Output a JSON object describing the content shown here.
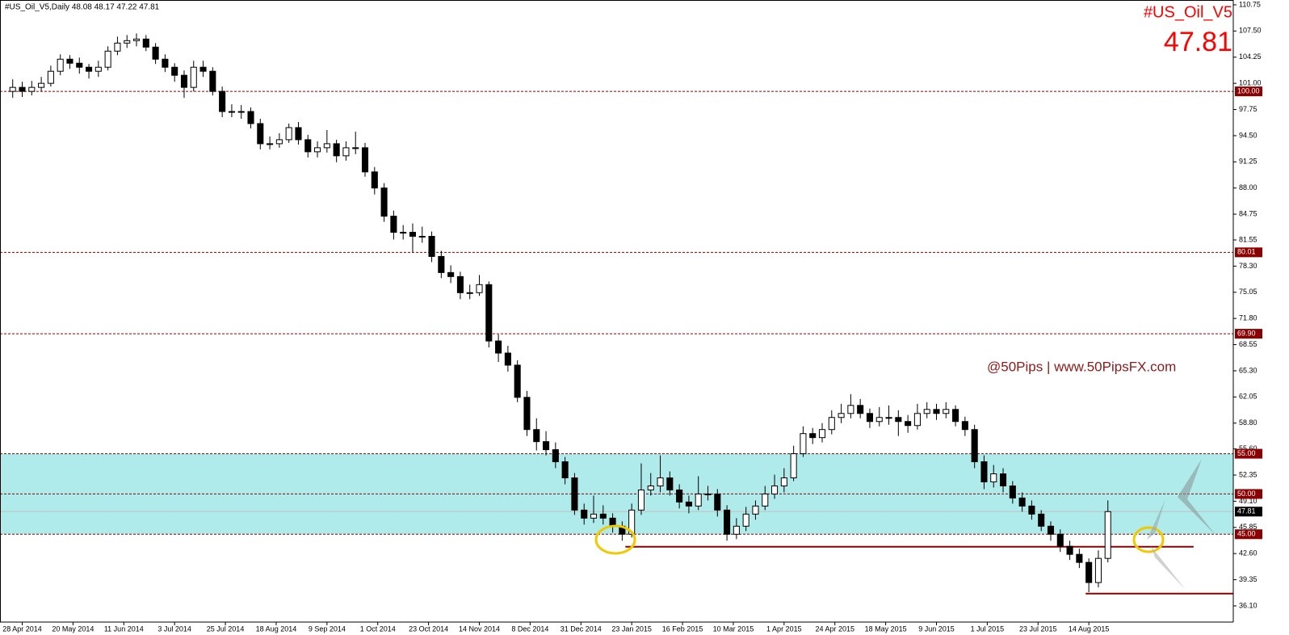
{
  "chart_data": {
    "type": "candlestick",
    "title": "#US_Oil_V5,Daily  48.08 48.17 47.22 47.81",
    "symbol": "#US_Oil_V5",
    "last_price": 47.81,
    "watermark": "@50Pips | www.50PipsFX.com",
    "xlim": [
      -2,
      386.5
    ],
    "ylim": [
      34.09,
      111.35
    ],
    "xticks": [
      {
        "value": 5,
        "label": "28 Apr 2014"
      },
      {
        "value": 21,
        "label": "20 May 2014"
      },
      {
        "value": 37,
        "label": "11 Jun 2014"
      },
      {
        "value": 53,
        "label": "3 Jul 2014"
      },
      {
        "value": 69,
        "label": "25 Jul 2014"
      },
      {
        "value": 85,
        "label": "18 Aug 2014"
      },
      {
        "value": 101,
        "label": "9 Sep 2014"
      },
      {
        "value": 117,
        "label": "1 Oct 2014"
      },
      {
        "value": 133,
        "label": "23 Oct 2014"
      },
      {
        "value": 149,
        "label": "14 Nov 2014"
      },
      {
        "value": 165,
        "label": "8 Dec 2014"
      },
      {
        "value": 181,
        "label": "31 Dec 2014"
      },
      {
        "value": 197,
        "label": "23 Jan 2015"
      },
      {
        "value": 213,
        "label": "16 Feb 2015"
      },
      {
        "value": 229,
        "label": "10 Mar 2015"
      },
      {
        "value": 245,
        "label": "1 Apr 2015"
      },
      {
        "value": 261,
        "label": "24 Apr 2015"
      },
      {
        "value": 277,
        "label": "18 May 2015"
      },
      {
        "value": 293,
        "label": "9 Jun 2015"
      },
      {
        "value": 309,
        "label": "1 Jul 2015"
      },
      {
        "value": 325,
        "label": "23 Jul 2015"
      },
      {
        "value": 341,
        "label": "14 Aug 2015"
      }
    ],
    "yticks": [
      110.75,
      {
        "value": 107.5,
        "label": "107.50"
      },
      104.25,
      {
        "value": 101,
        "label": "101.00"
      },
      97.75,
      {
        "value": 94.5,
        "label": "94.50"
      },
      91.25,
      {
        "value": 88,
        "label": "88.00"
      },
      84.75,
      81.55,
      {
        "value": 78.3,
        "label": "78.30"
      },
      75.05,
      {
        "value": 71.8,
        "label": "71.80"
      },
      68.55,
      {
        "value": 65.3,
        "label": "65.30"
      },
      62.05,
      {
        "value": 58.8,
        "label": "58.80"
      },
      {
        "value": 55.6,
        "label": "55.60"
      },
      52.35,
      {
        "value": 49.1,
        "label": "49.10"
      },
      45.85,
      {
        "value": 42.6,
        "label": "42.60"
      },
      39.35,
      {
        "value": 36.1,
        "label": "36.10"
      }
    ],
    "levels": [
      {
        "value": 100,
        "label": "100.00"
      },
      80.01,
      {
        "value": 69.9,
        "label": "69.90"
      },
      {
        "value": 55,
        "label": "55.00"
      },
      {
        "value": 50,
        "label": "50.00"
      },
      {
        "value": 45,
        "label": "45.00"
      }
    ],
    "zone": [
      45,
      55
    ],
    "zone_color": "#b0ebeb",
    "level_color": "#8b0000",
    "trendlines": [
      {
        "value": 43.45,
        "x": [
          195,
          374
        ]
      },
      {
        "value": 37.63,
        "x": [
          340,
          386.5
        ]
      }
    ],
    "x": [
      2,
      5,
      8,
      11,
      14,
      17,
      20,
      23,
      26,
      29,
      32,
      35,
      38,
      41,
      44,
      47,
      50,
      53,
      56,
      59,
      62,
      65,
      68,
      71,
      74,
      77,
      80,
      83,
      86,
      89,
      92,
      95,
      98,
      101,
      104,
      107,
      110,
      113,
      116,
      119,
      122,
      125,
      128,
      131,
      134,
      137,
      140,
      143,
      146,
      149,
      152,
      155,
      158,
      161,
      164,
      167,
      170,
      173,
      176,
      179,
      182,
      185,
      188,
      191,
      194,
      197,
      200,
      203,
      206,
      209,
      212,
      215,
      218,
      221,
      224,
      227,
      230,
      233,
      236,
      239,
      242,
      245,
      248,
      251,
      254,
      257,
      260,
      263,
      266,
      269,
      272,
      275,
      278,
      281,
      284,
      287,
      290,
      293,
      296,
      299,
      302,
      305,
      308,
      311,
      314,
      317,
      320,
      323,
      326,
      329,
      332,
      335,
      338,
      341,
      344,
      347
    ],
    "open": [
      100,
      100.5,
      100,
      100.5,
      101,
      102.5,
      104,
      103.5,
      103,
      102.5,
      103,
      105,
      106,
      106.3,
      106.5,
      105.5,
      104,
      103,
      102,
      100.5,
      103,
      102.5,
      100,
      97.5,
      97.5,
      97.5,
      96,
      93.5,
      93.5,
      94,
      95.5,
      94,
      92.5,
      93,
      93.5,
      92,
      93,
      93,
      90,
      88,
      84.5,
      82.5,
      82.5,
      82,
      82,
      79.5,
      77.5,
      77,
      75,
      75,
      76,
      69,
      67.5,
      66,
      62,
      58,
      56.5,
      55.5,
      54,
      52,
      48,
      47,
      47.5,
      47,
      46,
      45,
      48,
      50.5,
      51,
      52,
      50.5,
      49,
      48.5,
      50,
      50,
      48,
      45,
      46,
      47.5,
      48.5,
      50,
      51,
      52,
      55,
      57.5,
      57,
      58,
      59.5,
      60,
      61,
      60,
      59,
      59.5,
      59.5,
      59,
      58.5,
      60,
      60.5,
      60,
      60.5,
      59,
      58,
      54,
      51.5,
      52.5,
      51,
      49.5,
      48.5,
      47.5,
      46,
      45,
      43.5,
      42.5,
      41.5,
      39,
      42
    ],
    "high": [
      101.5,
      101.2,
      101.3,
      101.8,
      103.2,
      104.6,
      104.5,
      104.2,
      103.4,
      103.8,
      105.6,
      106.8,
      107,
      107.2,
      107,
      106,
      104.6,
      103.5,
      102.6,
      103.8,
      103.8,
      103,
      100.6,
      98.4,
      98.3,
      98,
      96.6,
      94.4,
      94.8,
      96,
      96.2,
      94.6,
      93.8,
      95.2,
      94,
      93.8,
      95,
      93.6,
      90.6,
      88.6,
      85.2,
      83.4,
      83.6,
      83.2,
      82.6,
      80.2,
      78.4,
      77.6,
      76,
      77.2,
      76.4,
      69.8,
      68.4,
      66.6,
      62.8,
      59.4,
      57.8,
      56.4,
      54.6,
      52.6,
      48.8,
      49.8,
      48.6,
      47.6,
      46.6,
      48.8,
      53.8,
      52.6,
      54.8,
      52.8,
      51.2,
      49.8,
      52.2,
      51,
      50.6,
      48.6,
      47,
      48.4,
      49.2,
      51,
      52.4,
      53.2,
      56,
      58.4,
      58.2,
      58.8,
      60.4,
      61.2,
      62.4,
      61.8,
      60.6,
      60.8,
      61,
      60.4,
      59.8,
      61.2,
      61.4,
      61.2,
      61.4,
      61,
      59.6,
      58.6,
      54.8,
      53.6,
      53.2,
      51.6,
      50.2,
      49.2,
      48,
      46.6,
      45.6,
      44.2,
      43.2,
      42,
      43,
      49.2
    ],
    "low": [
      99.2,
      99.3,
      99.5,
      100,
      100.6,
      102,
      102.8,
      102.2,
      101.6,
      101.8,
      102.6,
      104.5,
      105.4,
      105.6,
      105,
      103.4,
      102.4,
      101.2,
      99.2,
      100,
      101.8,
      99.5,
      96.8,
      96.8,
      96.6,
      95.4,
      92.8,
      92.8,
      93,
      93.6,
      93.4,
      91.8,
      91.8,
      92.4,
      91.2,
      91.4,
      92.2,
      89.4,
      87.2,
      83.8,
      81.6,
      81.6,
      80,
      81.2,
      78.8,
      76.8,
      76.2,
      74.2,
      74.2,
      74.6,
      68.2,
      66.4,
      65.2,
      61.4,
      57.2,
      55.4,
      54.8,
      53.2,
      51.2,
      47.4,
      46.2,
      46.4,
      46.2,
      45.2,
      44.2,
      44.6,
      47.4,
      49.8,
      50.2,
      49.8,
      48.2,
      47.6,
      48,
      49.2,
      47.2,
      44.2,
      44.4,
      45.4,
      46.8,
      48,
      49.4,
      50.2,
      51.6,
      54.6,
      56.2,
      56.4,
      57.4,
      58.8,
      59.4,
      59.4,
      58.2,
      58.4,
      58.6,
      57.2,
      57.6,
      58,
      59.4,
      59.2,
      59.4,
      58.4,
      57.2,
      53.2,
      50.6,
      50.8,
      50.2,
      48.8,
      47.8,
      46.8,
      45.4,
      44.2,
      42.8,
      41.8,
      40.8,
      37.8,
      38.4,
      41.5
    ],
    "close": [
      100.5,
      100,
      100.5,
      101,
      102.5,
      104,
      103.5,
      103,
      102.5,
      103,
      105,
      106,
      106.3,
      106.5,
      105.5,
      104,
      103,
      102,
      100.5,
      103,
      102.5,
      100,
      97.5,
      97.5,
      97.5,
      96,
      93.5,
      93.5,
      94,
      95.5,
      94,
      92.5,
      93,
      93.5,
      92,
      93,
      93,
      90,
      88,
      84.5,
      82.5,
      82.5,
      82,
      82,
      79.5,
      77.5,
      77,
      75,
      75,
      76,
      69,
      67.5,
      66,
      62,
      58,
      56.5,
      55.5,
      54,
      52,
      48,
      47,
      47.5,
      47,
      46,
      45,
      48,
      50.5,
      51,
      52,
      50.5,
      49,
      48.5,
      50,
      50,
      48,
      45,
      46,
      47.5,
      48.5,
      50,
      51,
      52,
      55,
      57.5,
      57,
      58,
      59.5,
      60,
      61,
      60,
      59,
      59.5,
      59.5,
      59,
      58.5,
      60,
      60.5,
      60,
      60.5,
      59,
      58,
      54,
      51.5,
      52.5,
      51,
      49.5,
      48.5,
      47.5,
      46,
      45,
      43.5,
      42.5,
      41.5,
      39,
      42,
      47.81
    ]
  }
}
